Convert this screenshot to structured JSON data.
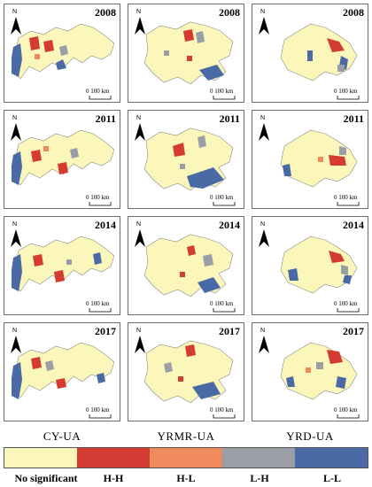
{
  "columns": [
    "CY-UA",
    "YRMR-UA",
    "YRD-UA"
  ],
  "years": [
    "2008",
    "2011",
    "2014",
    "2017"
  ],
  "north_label": "N",
  "scale_label": "0  100 km",
  "legend": [
    {
      "label": "No significant",
      "color": "#fbf6b9"
    },
    {
      "label": "H-H",
      "color": "#d43b33"
    },
    {
      "label": "H-L",
      "color": "#ee8a5c"
    },
    {
      "label": "L-H",
      "color": "#9a9ea7"
    },
    {
      "label": "L-L",
      "color": "#4a6aa6"
    }
  ]
}
